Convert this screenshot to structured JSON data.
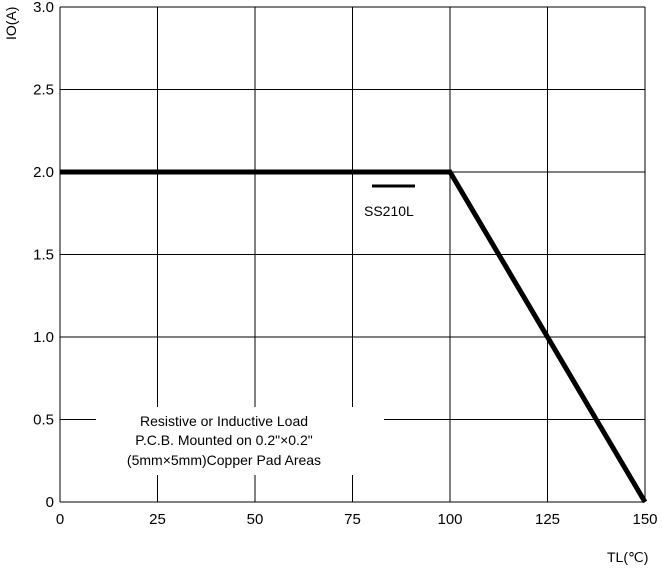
{
  "chart_data": {
    "type": "line",
    "xlabel": "TL(℃)",
    "ylabel": "IO(A)",
    "xlim": [
      0,
      150
    ],
    "ylim": [
      0,
      3.0
    ],
    "x_ticks": [
      "0",
      "25",
      "50",
      "75",
      "100",
      "125",
      "150"
    ],
    "y_ticks": [
      "0",
      "0.5",
      "1.0",
      "1.5",
      "2.0",
      "2.5",
      "3.0"
    ],
    "grid": true,
    "legend_position": "center-right",
    "series": [
      {
        "name": "SS210L",
        "x": [
          0,
          100,
          150
        ],
        "y": [
          2.0,
          2.0,
          0
        ]
      }
    ],
    "annotation": [
      "Resistive or Inductive Load",
      "P.C.B. Mounted on 0.2\"×0.2\"",
      "(5mm×5mm)Copper Pad Areas"
    ]
  }
}
